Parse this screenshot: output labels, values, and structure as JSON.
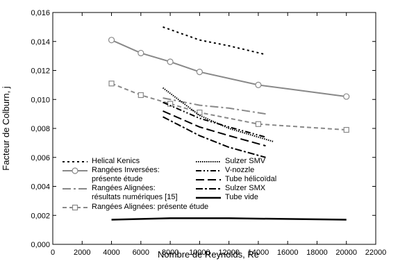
{
  "chart_data": {
    "type": "line",
    "xlabel": "Nombre de Reynolds, Re",
    "ylabel": "Facteur de Colburn, j",
    "xlim": [
      0,
      22000
    ],
    "xticks": [
      0,
      2000,
      4000,
      6000,
      8000,
      10000,
      12000,
      14000,
      16000,
      18000,
      20000,
      22000
    ],
    "ylim": [
      0,
      0.016
    ],
    "yticks": [
      {
        "value": 0,
        "label": "0,000"
      },
      {
        "value": 0.002,
        "label": "0,002"
      },
      {
        "value": 0.004,
        "label": "0,004"
      },
      {
        "value": 0.006,
        "label": "0,006"
      },
      {
        "value": 0.008,
        "label": "0,008"
      },
      {
        "value": 0.01,
        "label": "0,010"
      },
      {
        "value": 0.012,
        "label": "0,012"
      },
      {
        "value": 0.014,
        "label": "0,014"
      },
      {
        "value": 0.016,
        "label": "0,016"
      }
    ],
    "series": [
      {
        "name": "Helical Kenics",
        "color": "#000000",
        "dash": "3,4",
        "width": 2,
        "x": [
          7500,
          10000,
          12000,
          14500
        ],
        "values": [
          0.015,
          0.0141,
          0.0137,
          0.0131
        ]
      },
      {
        "name": "Rangées Inversées: présente étude",
        "color": "#888888",
        "dash": "none",
        "width": 2,
        "marker": "circle",
        "x": [
          4000,
          6000,
          8000,
          10000,
          14000,
          20000
        ],
        "values": [
          0.0141,
          0.0132,
          0.0126,
          0.0119,
          0.011,
          0.0102
        ]
      },
      {
        "name": "Rangées Alignées: résultats numériques [15]",
        "color": "#888888",
        "dash": "12,4,3,4",
        "width": 2,
        "x": [
          7500,
          10000,
          12000,
          14500
        ],
        "values": [
          0.0101,
          0.0096,
          0.0094,
          0.009
        ]
      },
      {
        "name": "Rangées Alignées: présente étude",
        "color": "#888888",
        "dash": "6,4",
        "width": 2,
        "marker": "square",
        "x": [
          4000,
          6000,
          8000,
          10000,
          14000,
          20000
        ],
        "values": [
          0.0111,
          0.0103,
          0.0097,
          0.0091,
          0.0083,
          0.0079
        ]
      },
      {
        "name": "Sulzer SMV",
        "color": "#000000",
        "dash": "1.5,1.5",
        "width": 2,
        "x": [
          7500,
          10000,
          12000,
          15000
        ],
        "values": [
          0.0108,
          0.0089,
          0.008,
          0.0071
        ]
      },
      {
        "name": "V-nozzle",
        "color": "#000000",
        "dash": "8,3,2,3,2,3",
        "width": 2,
        "x": [
          7500,
          10000,
          12000,
          14500
        ],
        "values": [
          0.0098,
          0.0087,
          0.0081,
          0.0074
        ]
      },
      {
        "name": "Tube hélicoïdal",
        "color": "#000000",
        "dash": "12,5",
        "width": 2,
        "x": [
          7500,
          10000,
          12000,
          14500
        ],
        "values": [
          0.0092,
          0.0081,
          0.0075,
          0.0068
        ]
      },
      {
        "name": "Sulzer SMX",
        "color": "#000000",
        "dash": "10,3,3,3",
        "width": 2,
        "x": [
          7500,
          10000,
          12000,
          14500
        ],
        "values": [
          0.0088,
          0.0075,
          0.0067,
          0.006
        ]
      },
      {
        "name": "Tube vide",
        "color": "#000000",
        "dash": "none",
        "width": 2.5,
        "x": [
          4000,
          8000,
          12000,
          20000
        ],
        "values": [
          0.0017,
          0.0018,
          0.0018,
          0.0017
        ]
      }
    ]
  }
}
